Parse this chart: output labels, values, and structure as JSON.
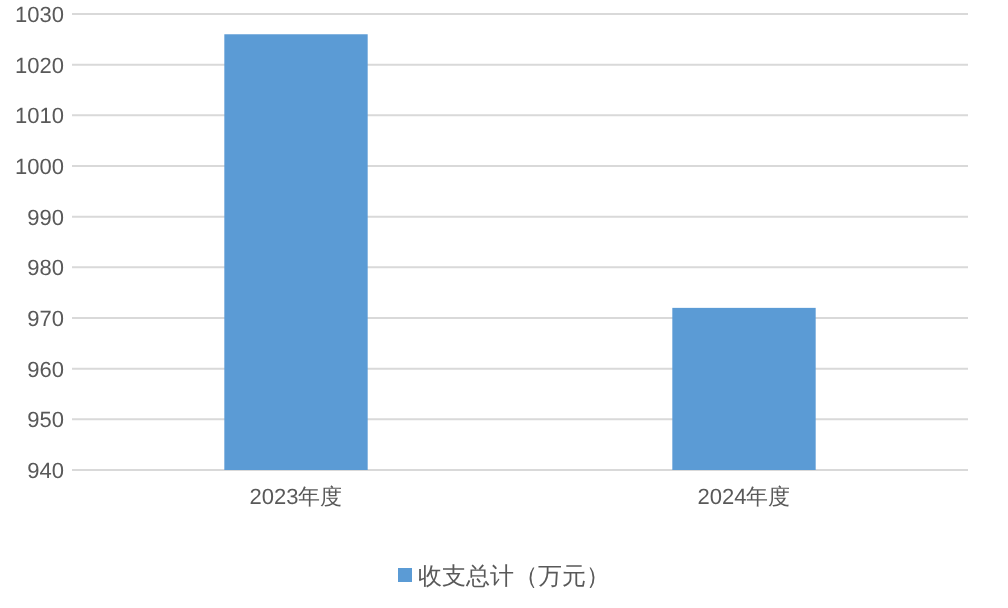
{
  "chart_data": {
    "type": "bar",
    "categories": [
      "2023年度",
      "2024年度"
    ],
    "series": [
      {
        "name": "收支总计（万元）",
        "color": "#5b9bd5",
        "values": [
          1026,
          972
        ]
      }
    ],
    "ylim": [
      940,
      1030
    ],
    "yticks": [
      940,
      950,
      960,
      970,
      980,
      990,
      1000,
      1010,
      1020,
      1030
    ],
    "grid": "y",
    "legend": "bottom"
  }
}
